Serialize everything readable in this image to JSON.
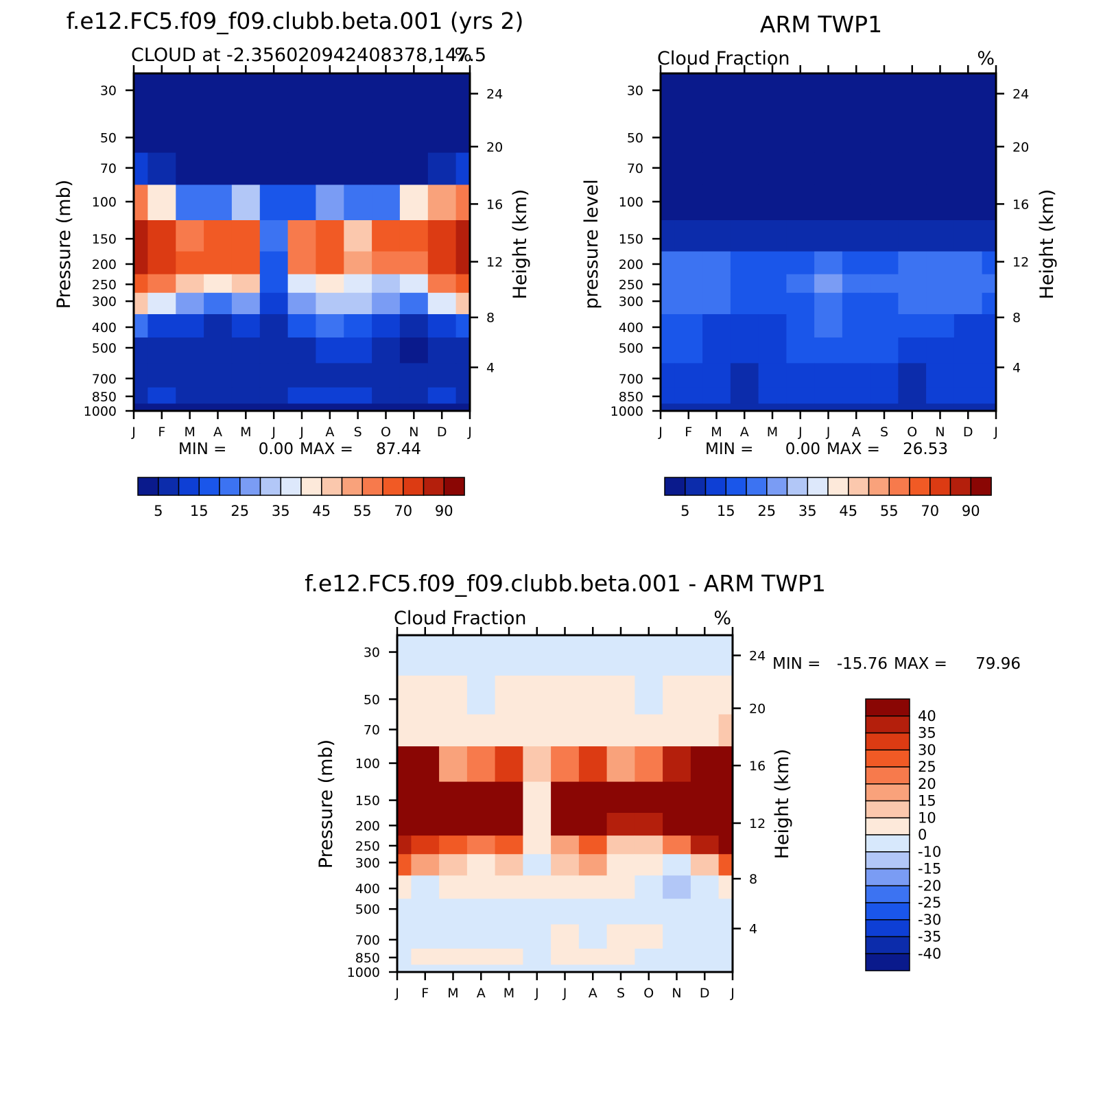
{
  "chart_data": [
    {
      "type": "heatmap",
      "title": "f.e12.FC5.f09_f09.clubb.beta.001 (yrs 2)",
      "subtitle": "CLOUD at -2.356020942408378,147.5",
      "units": "%",
      "ylabel": "Pressure (mb)",
      "ylabel_right": "Height (km)",
      "x_ticks": [
        "J",
        "F",
        "M",
        "A",
        "M",
        "J",
        "J",
        "A",
        "S",
        "O",
        "N",
        "D",
        "J"
      ],
      "y_ticks": [
        "30",
        "50",
        "70",
        "100",
        "150",
        "200",
        "250",
        "300",
        "400",
        "500",
        "700",
        "850",
        "1000"
      ],
      "y_ticks_right": [
        "24",
        "20",
        "16",
        "12",
        "8",
        "4"
      ],
      "min_label": "MIN =",
      "min_value": "0.00",
      "max_label": "MAX =",
      "max_value": "87.44",
      "colorbar_labels": [
        "5",
        "15",
        "25",
        "35",
        "45",
        "55",
        "70",
        "90"
      ],
      "data": [
        [
          1,
          1,
          1,
          1,
          1,
          1,
          1,
          1,
          1,
          1,
          1,
          1,
          1
        ],
        [
          4,
          2,
          1,
          1,
          1,
          1,
          1,
          1,
          1,
          1,
          1,
          2,
          4
        ],
        [
          10,
          7,
          3,
          3,
          3,
          3,
          3,
          3,
          3,
          3,
          4,
          7,
          10
        ],
        [
          55,
          40,
          20,
          22,
          30,
          15,
          18,
          25,
          20,
          22,
          40,
          50,
          58
        ],
        [
          88,
          75,
          58,
          60,
          65,
          20,
          55,
          62,
          48,
          60,
          65,
          78,
          88
        ],
        [
          80,
          70,
          62,
          62,
          66,
          18,
          58,
          65,
          50,
          55,
          55,
          70,
          82
        ],
        [
          60,
          55,
          45,
          40,
          45,
          15,
          38,
          40,
          35,
          32,
          35,
          55,
          62
        ],
        [
          45,
          35,
          25,
          20,
          28,
          10,
          28,
          32,
          30,
          26,
          22,
          35,
          45
        ],
        [
          20,
          12,
          10,
          8,
          14,
          8,
          16,
          20,
          18,
          14,
          8,
          12,
          18
        ],
        [
          8,
          6,
          8,
          8,
          8,
          7,
          8,
          10,
          10,
          8,
          3,
          6,
          8
        ],
        [
          8,
          8,
          8,
          7,
          6,
          7,
          8,
          9,
          9,
          8,
          7,
          8,
          8
        ],
        [
          9,
          10,
          9,
          9,
          9,
          9,
          10,
          14,
          11,
          9,
          9,
          10,
          9
        ],
        [
          3,
          3,
          3,
          3,
          3,
          3,
          3,
          3,
          3,
          3,
          3,
          3,
          3
        ]
      ]
    },
    {
      "type": "heatmap",
      "title": "ARM TWP1",
      "subtitle": "Cloud Fraction",
      "units": "%",
      "ylabel": "pressure level",
      "ylabel_right": "Height (km)",
      "x_ticks": [
        "J",
        "F",
        "M",
        "A",
        "M",
        "J",
        "J",
        "A",
        "S",
        "O",
        "N",
        "D",
        "J"
      ],
      "y_ticks": [
        "30",
        "50",
        "70",
        "100",
        "150",
        "200",
        "250",
        "300",
        "400",
        "500",
        "700",
        "850",
        "1000"
      ],
      "y_ticks_right": [
        "24",
        "20",
        "16",
        "12",
        "8",
        "4"
      ],
      "min_label": "MIN =",
      "min_value": "0.00",
      "max_label": "MAX =",
      "max_value": "26.53",
      "colorbar_labels": [
        "5",
        "15",
        "25",
        "35",
        "45",
        "55",
        "70",
        "90"
      ],
      "data": [
        [
          1,
          1,
          1,
          1,
          1,
          1,
          1,
          1,
          1,
          1,
          1,
          1,
          1
        ],
        [
          1,
          1,
          1,
          1,
          1,
          1,
          1,
          1,
          1,
          1,
          1,
          1,
          1
        ],
        [
          2,
          2,
          2,
          2,
          2,
          2,
          2,
          2,
          2,
          2,
          2,
          2,
          2
        ],
        [
          4,
          4,
          4,
          4,
          4,
          4,
          4,
          4,
          4,
          4,
          4,
          4,
          4
        ],
        [
          8,
          9,
          8,
          7,
          7,
          7,
          7,
          7,
          8,
          8,
          8,
          8,
          8
        ],
        [
          20,
          24,
          20,
          16,
          16,
          18,
          22,
          18,
          18,
          20,
          22,
          20,
          18
        ],
        [
          22,
          24,
          22,
          16,
          18,
          20,
          26,
          20,
          20,
          22,
          24,
          22,
          20
        ],
        [
          20,
          22,
          20,
          16,
          16,
          18,
          22,
          18,
          18,
          20,
          22,
          20,
          18
        ],
        [
          16,
          18,
          14,
          10,
          14,
          16,
          22,
          18,
          18,
          18,
          16,
          12,
          14
        ],
        [
          16,
          16,
          14,
          10,
          14,
          16,
          18,
          18,
          16,
          14,
          14,
          14,
          14
        ],
        [
          14,
          14,
          12,
          7,
          10,
          14,
          14,
          14,
          10,
          8,
          10,
          12,
          14
        ],
        [
          12,
          12,
          10,
          6,
          10,
          12,
          12,
          14,
          10,
          8,
          10,
          12,
          12
        ],
        [
          6,
          6,
          6,
          6,
          6,
          6,
          6,
          6,
          6,
          6,
          6,
          6,
          6
        ]
      ]
    },
    {
      "type": "heatmap",
      "title": "f.e12.FC5.f09_f09.clubb.beta.001 - ARM TWP1",
      "subtitle": "Cloud Fraction",
      "units": "%",
      "ylabel": "Pressure (mb)",
      "ylabel_right": "Height (km)",
      "x_ticks": [
        "J",
        "F",
        "M",
        "A",
        "M",
        "J",
        "J",
        "A",
        "S",
        "O",
        "N",
        "D",
        "J"
      ],
      "y_ticks": [
        "30",
        "50",
        "70",
        "100",
        "150",
        "200",
        "250",
        "300",
        "400",
        "500",
        "700",
        "850",
        "1000"
      ],
      "y_ticks_right": [
        "24",
        "20",
        "16",
        "12",
        "8",
        "4"
      ],
      "min_label": "MIN =",
      "min_value": "-15.76",
      "max_label": "MAX =",
      "max_value": "79.96",
      "colorbar_labels": [
        "40",
        "35",
        "30",
        "25",
        "20",
        "15",
        "10",
        "0",
        "-10",
        "-15",
        "-20",
        "-25",
        "-30",
        "-35",
        "-40"
      ],
      "data": [
        [
          -2,
          -2,
          -2,
          -2,
          -2,
          -2,
          -2,
          -2,
          -2,
          -2,
          -2,
          -2,
          -2
        ],
        [
          3,
          3,
          3,
          -2,
          3,
          3,
          3,
          3,
          3,
          -2,
          3,
          3,
          3
        ],
        [
          8,
          6,
          4,
          3,
          5,
          4,
          4,
          6,
          5,
          5,
          6,
          8,
          10
        ],
        [
          50,
          40,
          15,
          20,
          30,
          10,
          20,
          30,
          18,
          22,
          35,
          50,
          55
        ],
        [
          80,
          70,
          50,
          55,
          60,
          5,
          45,
          55,
          40,
          50,
          55,
          70,
          80
        ],
        [
          60,
          50,
          45,
          45,
          50,
          5,
          40,
          45,
          35,
          35,
          40,
          55,
          60
        ],
        [
          38,
          30,
          25,
          20,
          25,
          3,
          18,
          25,
          12,
          10,
          20,
          35,
          40
        ],
        [
          25,
          15,
          10,
          5,
          10,
          -6,
          10,
          15,
          5,
          2,
          -10,
          10,
          25
        ],
        [
          5,
          -10,
          3,
          5,
          5,
          3,
          5,
          8,
          5,
          -8,
          -12,
          -5,
          5
        ],
        [
          -8,
          -5,
          -3,
          -4,
          -6,
          -6,
          -4,
          -3,
          -3,
          -3,
          -3,
          -3,
          -8
        ],
        [
          -3,
          -3,
          -3,
          -3,
          -3,
          -3,
          2,
          -3,
          3,
          3,
          -3,
          -3,
          -3
        ],
        [
          -3,
          3,
          3,
          3,
          2,
          -3,
          3,
          5,
          3,
          -3,
          -3,
          -3,
          -3
        ],
        [
          -2,
          -2,
          -2,
          -2,
          -2,
          -2,
          -2,
          -2,
          -2,
          -2,
          -2,
          -2,
          -2
        ]
      ]
    }
  ]
}
